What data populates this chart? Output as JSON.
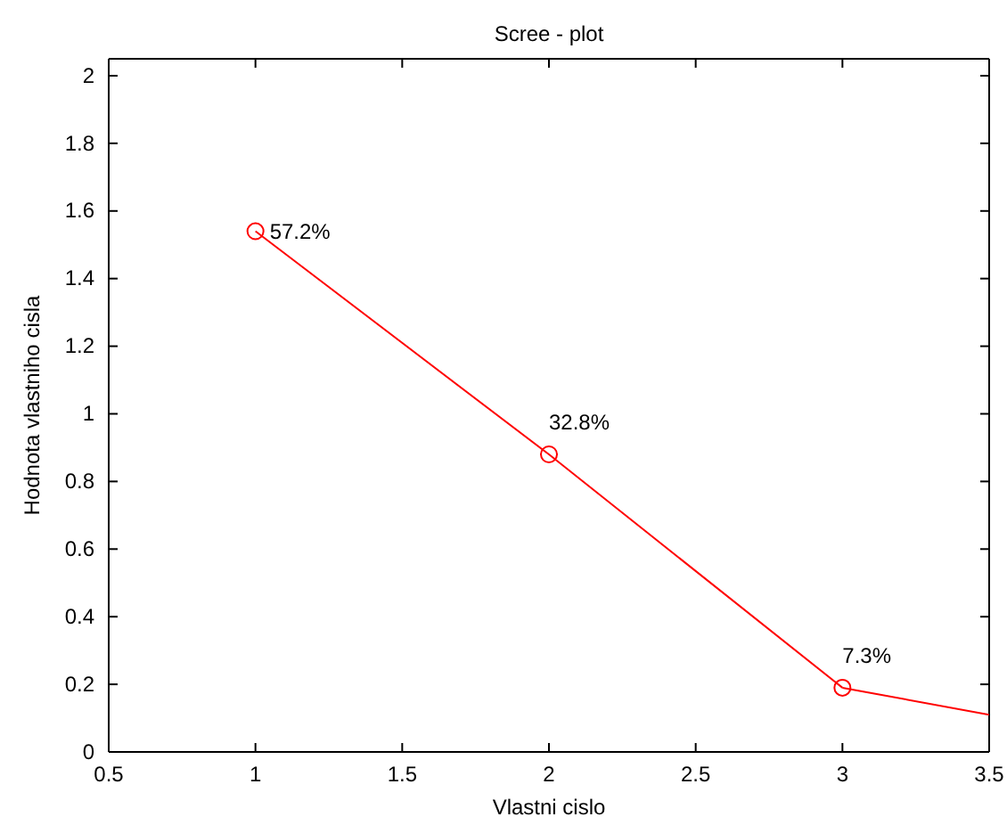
{
  "chart_data": {
    "type": "line",
    "title": "Scree - plot",
    "xlabel": "Vlastni cislo",
    "ylabel": "Hodnota vlastniho cisla",
    "xlim": [
      0.5,
      3.5
    ],
    "xticks": [
      0.5,
      1,
      1.5,
      2,
      2.5,
      3,
      3.5
    ],
    "ylim": [
      0,
      2.05
    ],
    "yticks": [
      0,
      0.2,
      0.4,
      0.6,
      0.8,
      1,
      1.2,
      1.4,
      1.6,
      1.8,
      2
    ],
    "grid": false,
    "series": [
      {
        "color": "#ff0000",
        "x": [
          1,
          2,
          3
        ],
        "values": [
          1.54,
          0.88,
          0.19
        ],
        "marker": "circle"
      },
      {
        "color": "#ff0000",
        "x": [
          3,
          3.5
        ],
        "values": [
          0.19,
          0.11
        ],
        "marker": "none"
      }
    ],
    "annotations": [
      {
        "text": "57.2%",
        "x": 1,
        "y": 1.54
      },
      {
        "text": "32.8%",
        "x": 2,
        "y": 0.88
      },
      {
        "text": "7.3%",
        "x": 3,
        "y": 0.19
      }
    ]
  }
}
